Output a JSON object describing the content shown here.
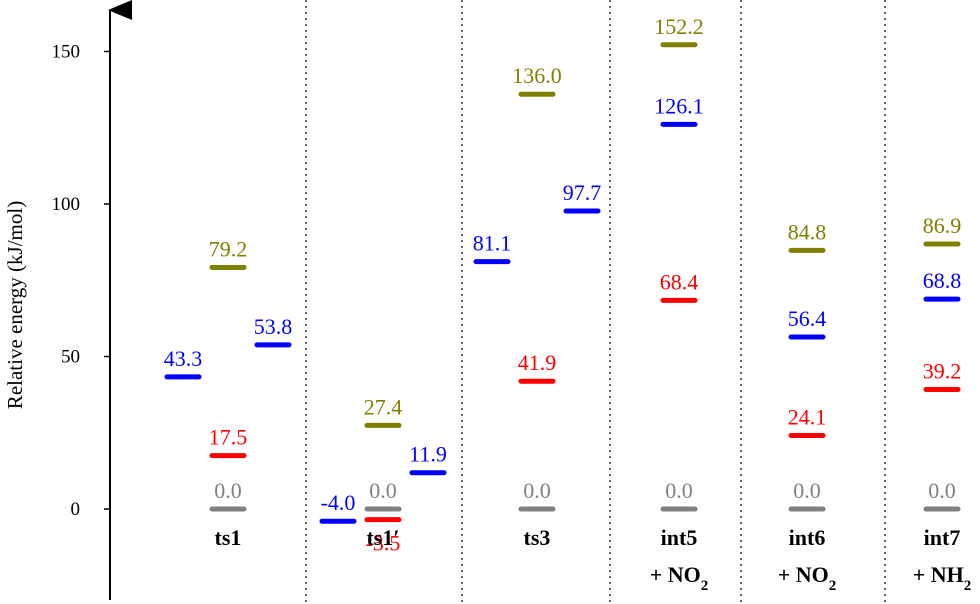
{
  "chart_data": {
    "type": "energy-level",
    "ylabel": "Relative energy (kJ/mol)",
    "ylim": [
      -30,
      165
    ],
    "yticks": [
      0,
      50,
      100,
      150
    ],
    "ytick_labels": [
      "0",
      "50",
      "100",
      "150"
    ],
    "grid": false,
    "separators": "dotted vertical",
    "colors": {
      "gray": "#808080",
      "red": "#ff0000",
      "blue": "#0000ff",
      "olive": "#808000",
      "axis": "#000000"
    },
    "categories": [
      {
        "label": "ts1",
        "sublabel": "",
        "levels": [
          {
            "value": 0.0,
            "text": "0.0",
            "color": "gray",
            "slot": 1,
            "label_pos": "above"
          },
          {
            "value": 17.5,
            "text": "17.5",
            "color": "red",
            "slot": 1,
            "label_pos": "above"
          },
          {
            "value": 43.3,
            "text": "43.3",
            "color": "blue",
            "slot": 0,
            "label_pos": "above"
          },
          {
            "value": 79.2,
            "text": "79.2",
            "color": "olive",
            "slot": 1,
            "label_pos": "above"
          },
          {
            "value": 53.8,
            "text": "53.8",
            "color": "blue",
            "slot": 2,
            "label_pos": "above"
          }
        ]
      },
      {
        "label": "ts1′",
        "sublabel": "",
        "levels": [
          {
            "value": -4.0,
            "text": "-4.0",
            "color": "blue",
            "slot": 0,
            "label_pos": "above"
          },
          {
            "value": 0.0,
            "text": "0.0",
            "color": "gray",
            "slot": 1,
            "label_pos": "above"
          },
          {
            "value": -3.5,
            "text": "-3.5",
            "color": "red",
            "slot": 1,
            "label_pos": "below"
          },
          {
            "value": 27.4,
            "text": "27.4",
            "color": "olive",
            "slot": 1,
            "label_pos": "above"
          },
          {
            "value": 11.9,
            "text": "11.9",
            "color": "blue",
            "slot": 2,
            "label_pos": "above"
          }
        ]
      },
      {
        "label": "ts3",
        "sublabel": "",
        "levels": [
          {
            "value": 0.0,
            "text": "0.0",
            "color": "gray",
            "slot": 1,
            "label_pos": "above"
          },
          {
            "value": 41.9,
            "text": "41.9",
            "color": "red",
            "slot": 1,
            "label_pos": "above"
          },
          {
            "value": 81.1,
            "text": "81.1",
            "color": "blue",
            "slot": 0,
            "label_pos": "above"
          },
          {
            "value": 136.0,
            "text": "136.0",
            "color": "olive",
            "slot": 1,
            "label_pos": "above"
          },
          {
            "value": 97.7,
            "text": "97.7",
            "color": "blue",
            "slot": 2,
            "label_pos": "above"
          }
        ]
      },
      {
        "label": "int5",
        "sublabel": "+ NO",
        "sub_subscript": "2",
        "levels": [
          {
            "value": 0.0,
            "text": "0.0",
            "color": "gray",
            "slot": 1,
            "label_pos": "above"
          },
          {
            "value": 68.4,
            "text": "68.4",
            "color": "red",
            "slot": 1,
            "label_pos": "above"
          },
          {
            "value": 126.1,
            "text": "126.1",
            "color": "blue",
            "slot": 1,
            "label_pos": "above"
          },
          {
            "value": 152.2,
            "text": "152.2",
            "color": "olive",
            "slot": 1,
            "label_pos": "above"
          }
        ]
      },
      {
        "label": "int6",
        "sublabel": "+ NO",
        "sub_subscript": "2",
        "levels": [
          {
            "value": 0.0,
            "text": "0.0",
            "color": "gray",
            "slot": 1,
            "label_pos": "above"
          },
          {
            "value": 24.1,
            "text": "24.1",
            "color": "red",
            "slot": 1,
            "label_pos": "above"
          },
          {
            "value": 56.4,
            "text": "56.4",
            "color": "blue",
            "slot": 1,
            "label_pos": "above"
          },
          {
            "value": 84.8,
            "text": "84.8",
            "color": "olive",
            "slot": 1,
            "label_pos": "above"
          }
        ]
      },
      {
        "label": "int7",
        "sublabel": "+ NH",
        "sub_subscript": "2",
        "levels": [
          {
            "value": 0.0,
            "text": "0.0",
            "color": "gray",
            "slot": 1,
            "label_pos": "above"
          },
          {
            "value": 39.2,
            "text": "39.2",
            "color": "red",
            "slot": 1,
            "label_pos": "above"
          },
          {
            "value": 68.8,
            "text": "68.8",
            "color": "blue",
            "slot": 1,
            "label_pos": "above"
          },
          {
            "value": 86.9,
            "text": "86.9",
            "color": "olive",
            "slot": 1,
            "label_pos": "above"
          }
        ]
      }
    ]
  }
}
